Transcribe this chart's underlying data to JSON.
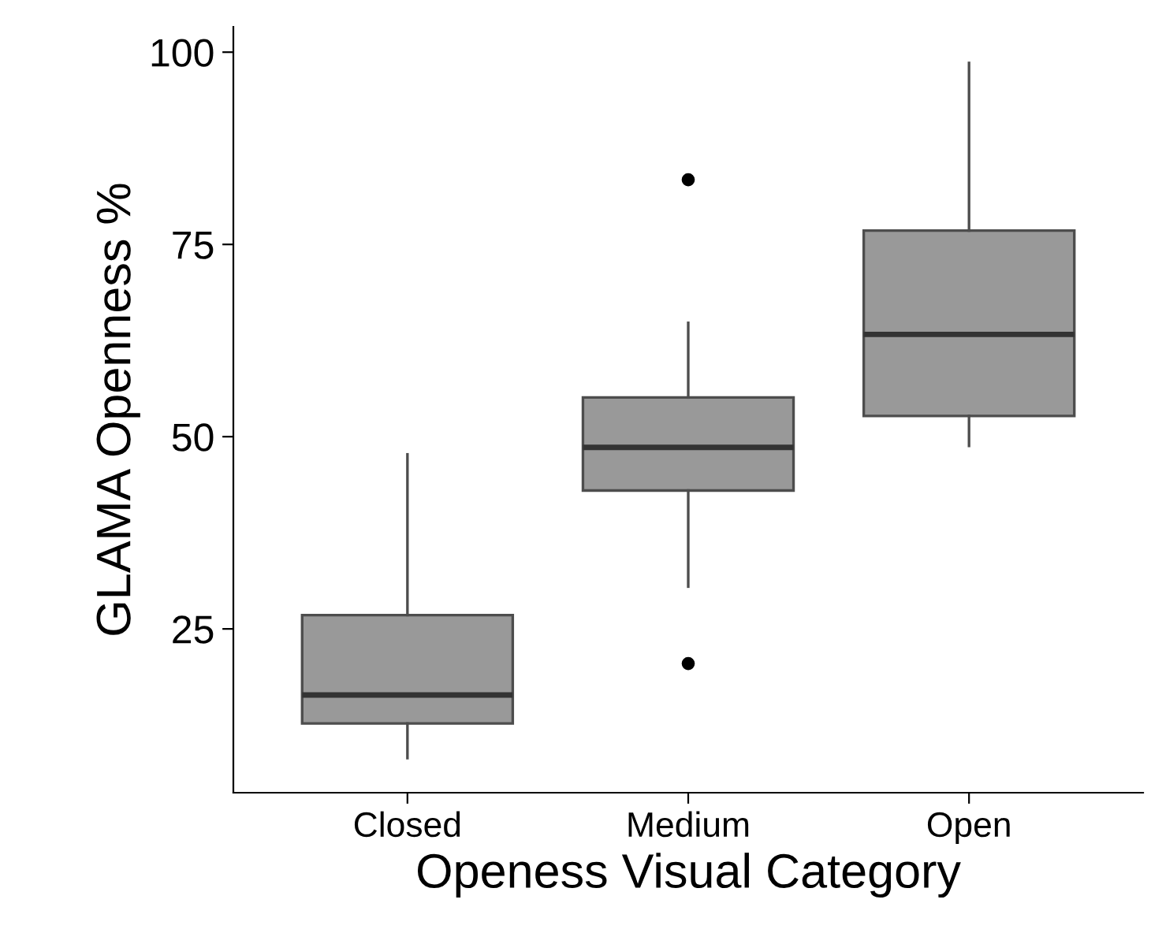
{
  "chart_data": {
    "type": "box",
    "xlabel": "Openess Visual Category",
    "ylabel": "GLAMA Openness %",
    "categories": [
      "Closed",
      "Medium",
      "Open"
    ],
    "boxes": [
      {
        "low": 8.2,
        "q1": 12.7,
        "median": 16.4,
        "q3": 26.8,
        "high": 47.7
      },
      {
        "low": 30.5,
        "q1": 43.0,
        "median": 48.6,
        "q3": 55.1,
        "high": 64.8,
        "outliers": [
          83.4,
          20.5
        ]
      },
      {
        "low": 48.8,
        "q1": 52.7,
        "median": 63.3,
        "q3": 76.8,
        "high": 98.6
      }
    ],
    "color": "#999999",
    "ylim": [
      3.7,
      103.3
    ],
    "yticks": [
      25,
      50,
      75,
      100
    ],
    "grid": false
  }
}
